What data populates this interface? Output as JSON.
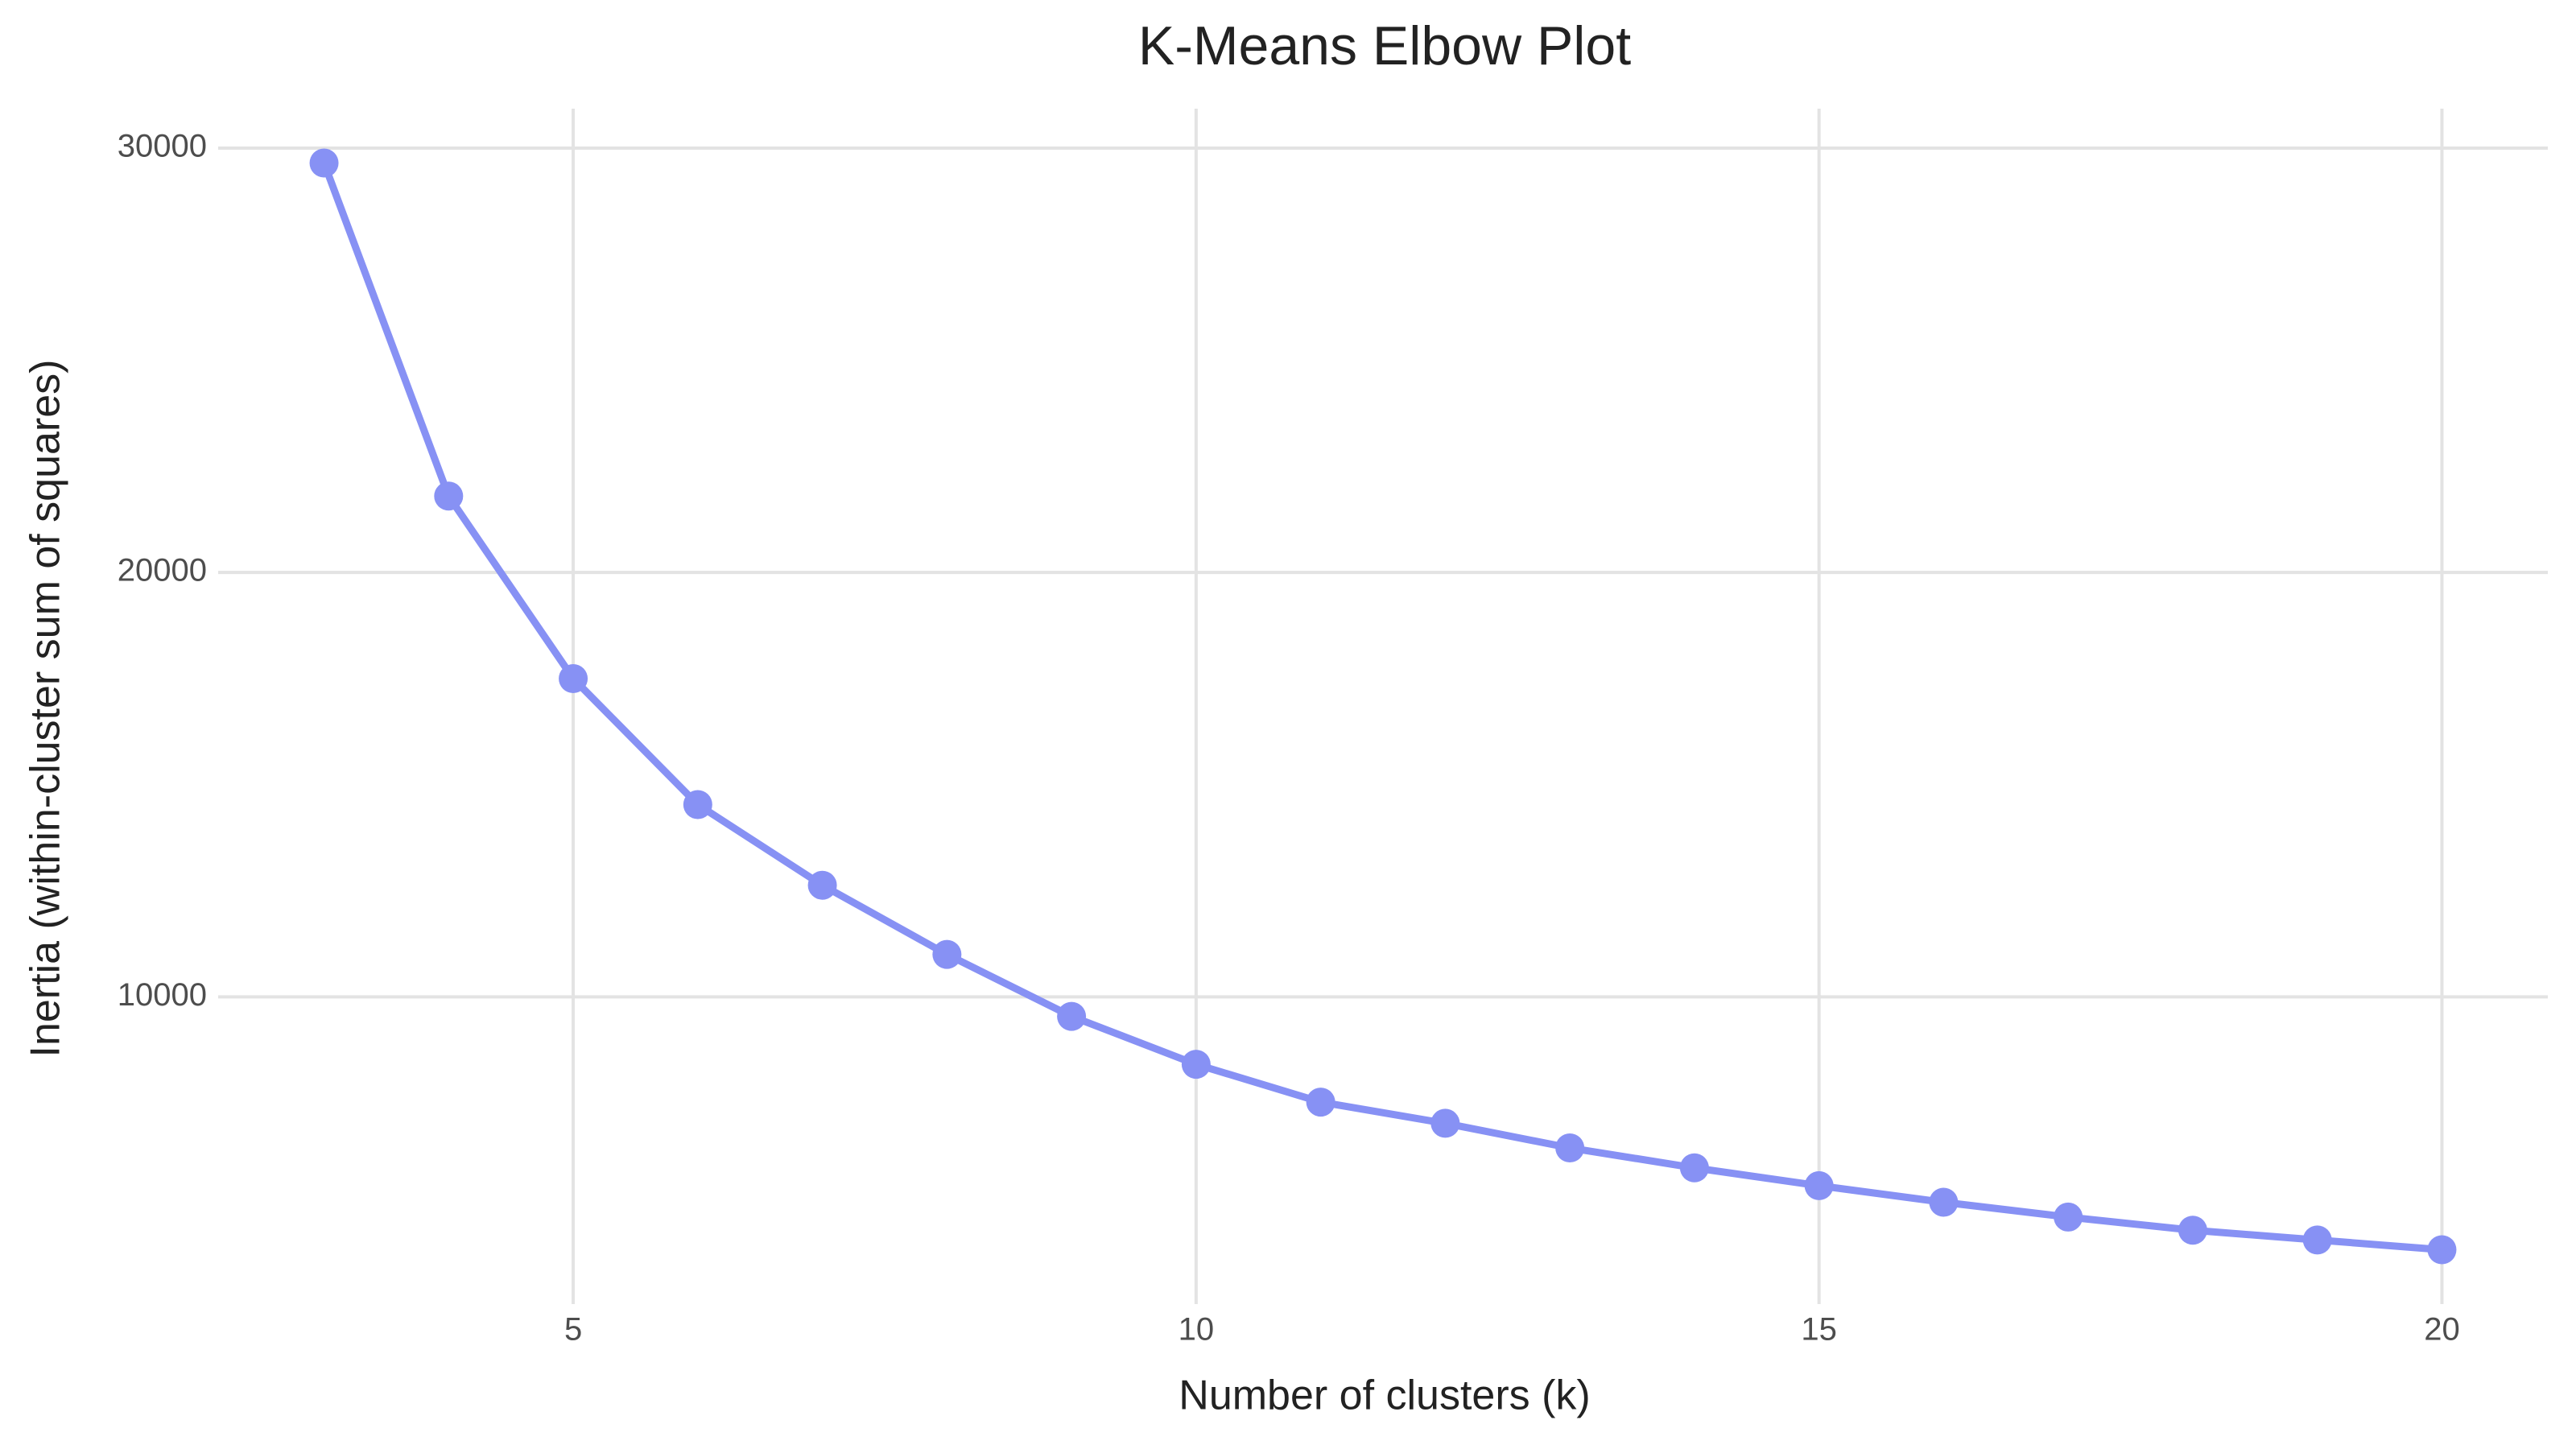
{
  "chart_data": {
    "type": "line",
    "title": "K-Means Elbow Plot",
    "x_label": "Number of clusters (k)",
    "y_label": "Inertia (within-cluster sum of squares)",
    "x": [
      3,
      4,
      5,
      6,
      7,
      8,
      9,
      10,
      11,
      12,
      13,
      14,
      15,
      16,
      17,
      18,
      19,
      20
    ],
    "series": [
      {
        "color": "#8791f4",
        "values": [
          29650,
          21800,
          17500,
          14530,
          12630,
          11000,
          9540,
          8410,
          7520,
          7020,
          6440,
          5970,
          5550,
          5160,
          4810,
          4500,
          4270,
          4040
        ]
      }
    ],
    "xlim": [
      2.15,
      20.85
    ],
    "ylim": [
      2760,
      30930
    ],
    "xticks": [
      5,
      10,
      15,
      20
    ],
    "yticks": [
      10000,
      20000,
      30000
    ],
    "grid": true
  }
}
